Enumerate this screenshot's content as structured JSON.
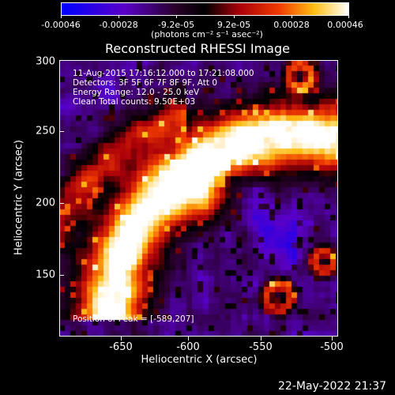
{
  "colorbar": {
    "labels": [
      "-0.00046",
      "-0.00028",
      "-9.2e-05",
      "9.2e-05",
      "0.00028",
      "0.00046"
    ],
    "unit_label": "(photons cm⁻² s⁻¹ asec⁻²)",
    "min": -0.00046,
    "max": 0.00046
  },
  "title": "Reconstructed RHESSI Image",
  "info": {
    "time_range": "11-Aug-2015 17:16:12.000 to 17:21:08.000",
    "detectors": "Detectors: 3F 5F 6F 7F 8F 9F, Att 0",
    "energy": "Energy Range: 12.0 - 25.0 keV",
    "clean": "Clean     Total counts: 9.50E+03"
  },
  "peak_text": "Position of Peak = [-589,207]",
  "axes": {
    "xlabel": "Heliocentric X (arcsec)",
    "ylabel": "Heliocentric Y (arcsec)",
    "xticks": [
      "-650",
      "-600",
      "-550",
      "-500"
    ],
    "yticks": [
      "300",
      "250",
      "200",
      "150"
    ],
    "xlim": [
      -690,
      -500
    ],
    "ylim": [
      108,
      300
    ]
  },
  "footer": {
    "date": "22-May-2022 21:37"
  }
}
